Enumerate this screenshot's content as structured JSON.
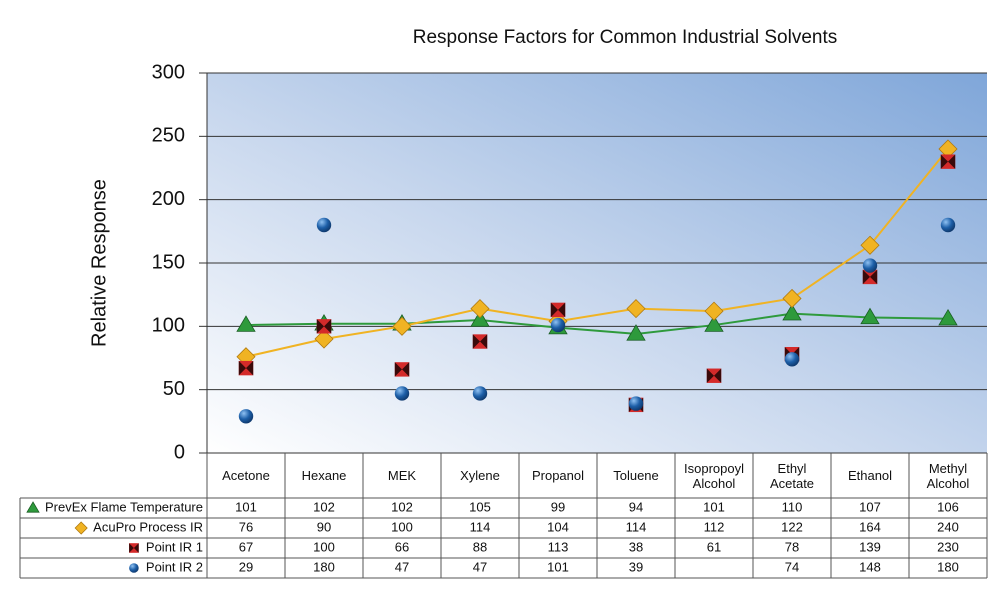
{
  "chart_data": {
    "type": "line",
    "title": "Response Factors for Common Industrial Solvents",
    "y_label": "Relative Response",
    "categories": [
      "Acetone",
      "Hexane",
      "MEK",
      "Xylene",
      "Propanol",
      "Toluene",
      "Isopropoyl Alcohol",
      "Ethyl Acetate",
      "Ethanol",
      "Methyl Alcohol"
    ],
    "series": [
      {
        "name": "PrevEx Flame Temperature",
        "color": "#2e9a3c",
        "marker": "triangle",
        "line": true,
        "values": [
          101,
          102,
          102,
          105,
          99,
          94,
          101,
          110,
          107,
          106
        ]
      },
      {
        "name": "AcuPro Process IR",
        "color": "#f0b323",
        "marker": "diamond",
        "line": true,
        "values": [
          76,
          90,
          100,
          114,
          104,
          114,
          112,
          122,
          164,
          240
        ]
      },
      {
        "name": "Point IR 1",
        "color": "#d42a2a",
        "marker": "square",
        "line": false,
        "values": [
          67,
          100,
          66,
          88,
          113,
          38,
          61,
          78,
          139,
          230
        ]
      },
      {
        "name": "Point IR 2",
        "color": "#1d5fa8",
        "marker": "circle",
        "line": false,
        "values": [
          29,
          180,
          47,
          47,
          101,
          39,
          null,
          74,
          148,
          180
        ]
      }
    ],
    "ylim": [
      0,
      300
    ],
    "yticks": [
      0,
      50,
      100,
      150,
      200,
      250,
      300
    ],
    "grid": true
  }
}
